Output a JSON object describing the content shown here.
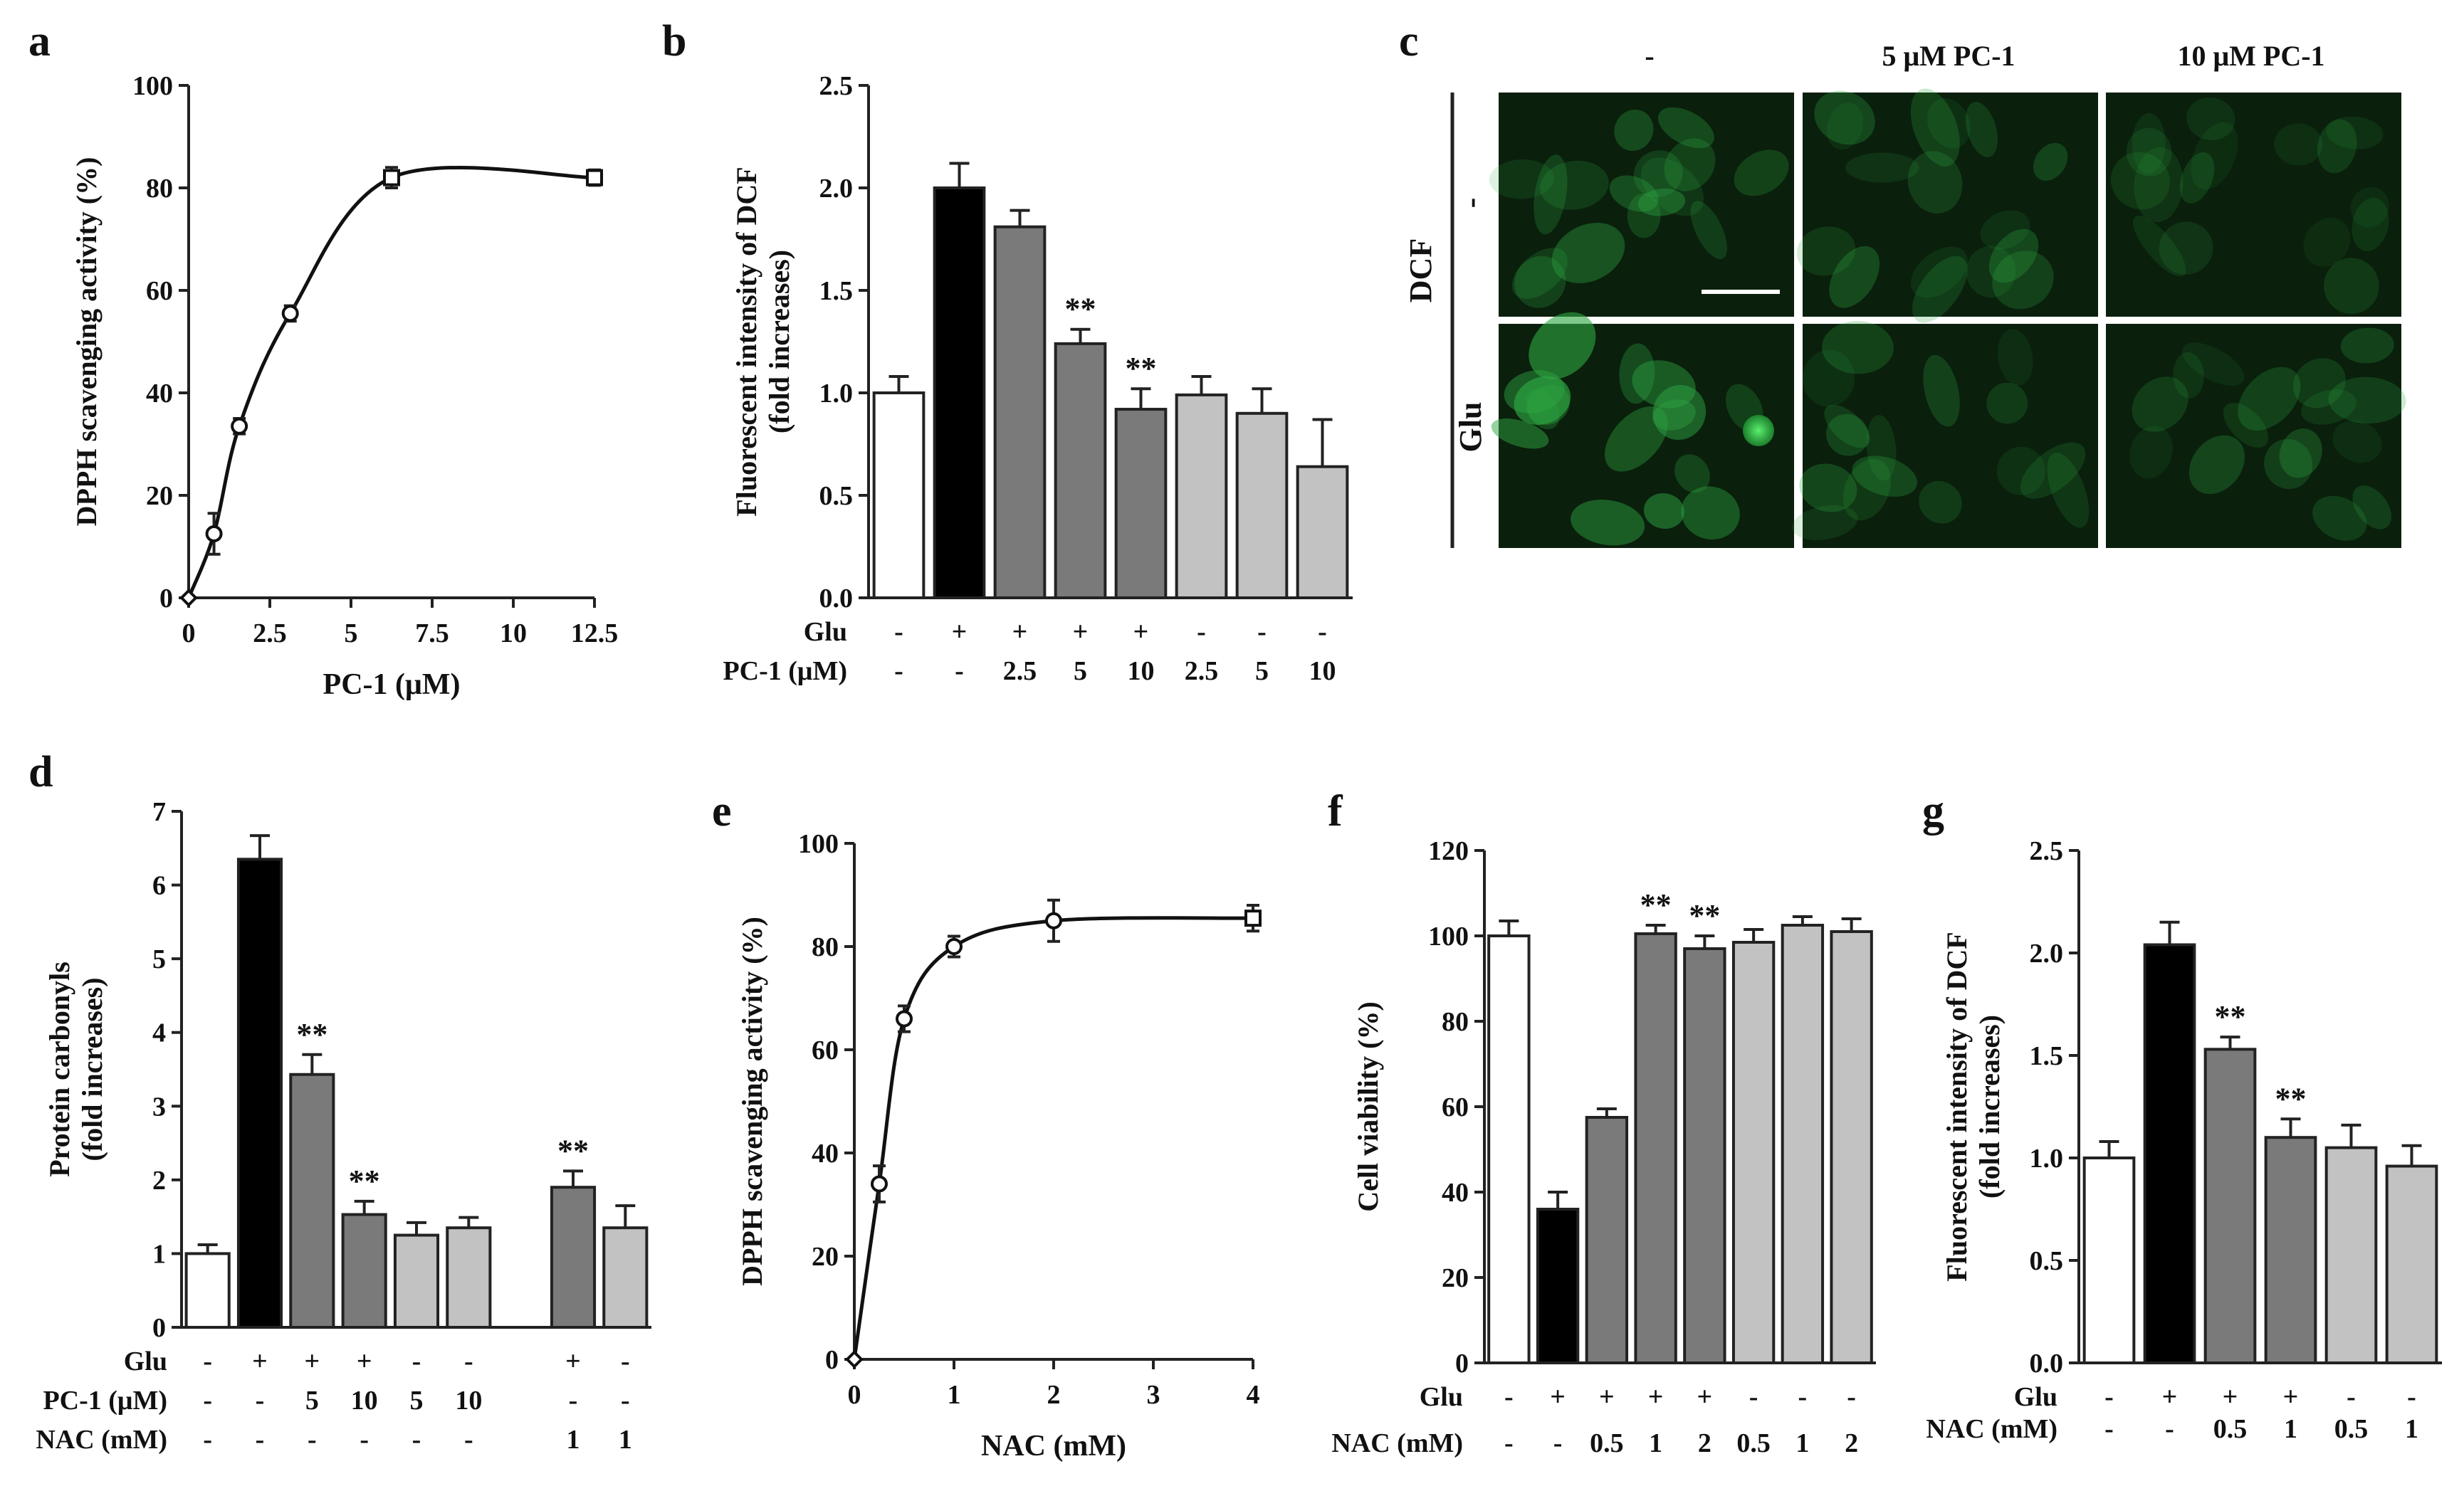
{
  "figure_labels": {
    "a": "a",
    "b": "b",
    "c": "c",
    "d": "d",
    "e": "e",
    "f": "f",
    "g": "g"
  },
  "colors": {
    "white": "#ffffff",
    "black": "#000000",
    "dark_gray": "#7a7a7a",
    "light_gray": "#c2c2c2",
    "cell_green": "#2ea642"
  },
  "chart_data": [
    {
      "id": "a",
      "type": "line",
      "xlabel": "PC-1 (μM)",
      "ylabel": "DPPH scavenging activity (%)",
      "xlim": [
        0,
        12.5
      ],
      "ylim": [
        0,
        100
      ],
      "xticks": [
        "0",
        "2.5",
        "5",
        "7.5",
        "10",
        "12.5"
      ],
      "yticks": [
        "0",
        "20",
        "40",
        "60",
        "80",
        "100"
      ],
      "x": [
        0,
        0.78,
        1.56,
        3.13,
        6.25,
        12.5
      ],
      "y": [
        0,
        12.5,
        33.5,
        55.5,
        82,
        82
      ],
      "err": [
        0,
        4,
        1.5,
        1.5,
        2,
        1.5
      ]
    },
    {
      "id": "b",
      "type": "bar",
      "ylabel": "Fluorescent intensity of DCF (fold increases)",
      "ylim": [
        0,
        2.5
      ],
      "yticks": [
        "0.0",
        "0.5",
        "1.0",
        "1.5",
        "2.0",
        "2.5"
      ],
      "values": [
        1.0,
        2.0,
        1.81,
        1.24,
        0.92,
        0.99,
        0.9,
        0.64
      ],
      "errors": [
        0.08,
        0.12,
        0.08,
        0.07,
        0.1,
        0.09,
        0.12,
        0.23
      ],
      "fills": [
        "white",
        "black",
        "dark_gray",
        "dark_gray",
        "dark_gray",
        "light_gray",
        "light_gray",
        "light_gray"
      ],
      "significance": [
        "",
        "",
        "",
        "**",
        "**",
        "",
        "",
        ""
      ],
      "conditions": [
        {
          "label": "Glu",
          "values": [
            "-",
            "+",
            "+",
            "+",
            "+",
            "-",
            "-",
            "-"
          ]
        },
        {
          "label": "PC-1 (μM)",
          "values": [
            "-",
            "-",
            "2.5",
            "5",
            "10",
            "2.5",
            "5",
            "10"
          ]
        }
      ]
    },
    {
      "id": "d",
      "type": "bar",
      "ylabel": "Protein carbonyls (fold increases)",
      "ylim": [
        0,
        7
      ],
      "yticks": [
        "0",
        "1",
        "2",
        "3",
        "4",
        "5",
        "6",
        "7"
      ],
      "values": [
        1.0,
        6.35,
        3.43,
        1.53,
        1.25,
        1.35,
        null,
        1.9,
        1.35
      ],
      "errors": [
        0.12,
        0.32,
        0.27,
        0.18,
        0.17,
        0.14,
        null,
        0.22,
        0.3
      ],
      "fills": [
        "white",
        "black",
        "dark_gray",
        "dark_gray",
        "light_gray",
        "light_gray",
        "",
        "dark_gray",
        "light_gray"
      ],
      "significance": [
        "",
        "",
        "**",
        "**",
        "",
        "",
        "",
        "**",
        ""
      ],
      "conditions": [
        {
          "label": "Glu",
          "values": [
            "-",
            "+",
            "+",
            "+",
            "-",
            "-",
            "",
            "+",
            "-"
          ]
        },
        {
          "label": "PC-1 (μM)",
          "values": [
            "-",
            "-",
            "5",
            "10",
            "5",
            "10",
            "",
            "-",
            "-"
          ]
        },
        {
          "label": "NAC (mM)",
          "values": [
            "-",
            "-",
            "-",
            "-",
            "-",
            "-",
            "",
            "1",
            "1"
          ]
        }
      ]
    },
    {
      "id": "e",
      "type": "line",
      "xlabel": "NAC (mM)",
      "ylabel": "DPPH scavenging activity (%)",
      "xlim": [
        0,
        4
      ],
      "ylim": [
        0,
        100
      ],
      "xticks": [
        "0",
        "1",
        "2",
        "3",
        "4"
      ],
      "yticks": [
        "0",
        "20",
        "40",
        "60",
        "80",
        "100"
      ],
      "x": [
        0,
        0.25,
        0.5,
        1,
        2,
        4
      ],
      "y": [
        0,
        34,
        66,
        80,
        85,
        85.5
      ],
      "err": [
        0,
        3.5,
        2.5,
        2,
        4,
        2.5
      ]
    },
    {
      "id": "f",
      "type": "bar",
      "ylabel": "Cell viability (%)",
      "ylim": [
        0,
        120
      ],
      "yticks": [
        "0",
        "20",
        "40",
        "60",
        "80",
        "100",
        "120"
      ],
      "values": [
        100,
        36,
        57.5,
        100.5,
        97,
        98.5,
        102.5,
        101
      ],
      "errors": [
        3.5,
        4,
        2,
        2,
        3,
        3,
        2,
        3
      ],
      "fills": [
        "white",
        "black",
        "dark_gray",
        "dark_gray",
        "dark_gray",
        "light_gray",
        "light_gray",
        "light_gray"
      ],
      "significance": [
        "",
        "",
        "",
        "**",
        "**",
        "",
        "",
        ""
      ],
      "conditions": [
        {
          "label": "Glu",
          "values": [
            "-",
            "+",
            "+",
            "+",
            "+",
            "-",
            "-",
            "-"
          ]
        },
        {
          "label": "NAC (mM)",
          "values": [
            "-",
            "-",
            "0.5",
            "1",
            "2",
            "0.5",
            "1",
            "2"
          ]
        }
      ]
    },
    {
      "id": "g",
      "type": "bar",
      "ylabel": "Fluorescent intensity of DCF (fold increases)",
      "ylim": [
        0,
        2.5
      ],
      "yticks": [
        "0.0",
        "0.5",
        "1.0",
        "1.5",
        "2.0",
        "2.5"
      ],
      "values": [
        1.0,
        2.04,
        1.53,
        1.1,
        1.05,
        0.96
      ],
      "errors": [
        0.08,
        0.11,
        0.06,
        0.09,
        0.11,
        0.1
      ],
      "fills": [
        "white",
        "black",
        "dark_gray",
        "dark_gray",
        "light_gray",
        "light_gray"
      ],
      "significance": [
        "",
        "",
        "**",
        "**",
        "",
        ""
      ],
      "conditions": [
        {
          "label": "Glu",
          "values": [
            "-",
            "+",
            "+",
            "+",
            "-",
            "-"
          ]
        },
        {
          "label": "NAC (mM)",
          "values": [
            "-",
            "-",
            "0.5",
            "1",
            "0.5",
            "1"
          ]
        }
      ]
    }
  ],
  "micrographs": {
    "column_labels": [
      "-",
      "5 μM PC-1",
      "10 μM PC-1"
    ],
    "row_group_label": "DCF",
    "row_labels": [
      "-",
      "Glu"
    ],
    "intensity": [
      [
        0.55,
        0.45,
        0.3
      ],
      [
        0.9,
        0.45,
        0.4
      ]
    ]
  }
}
